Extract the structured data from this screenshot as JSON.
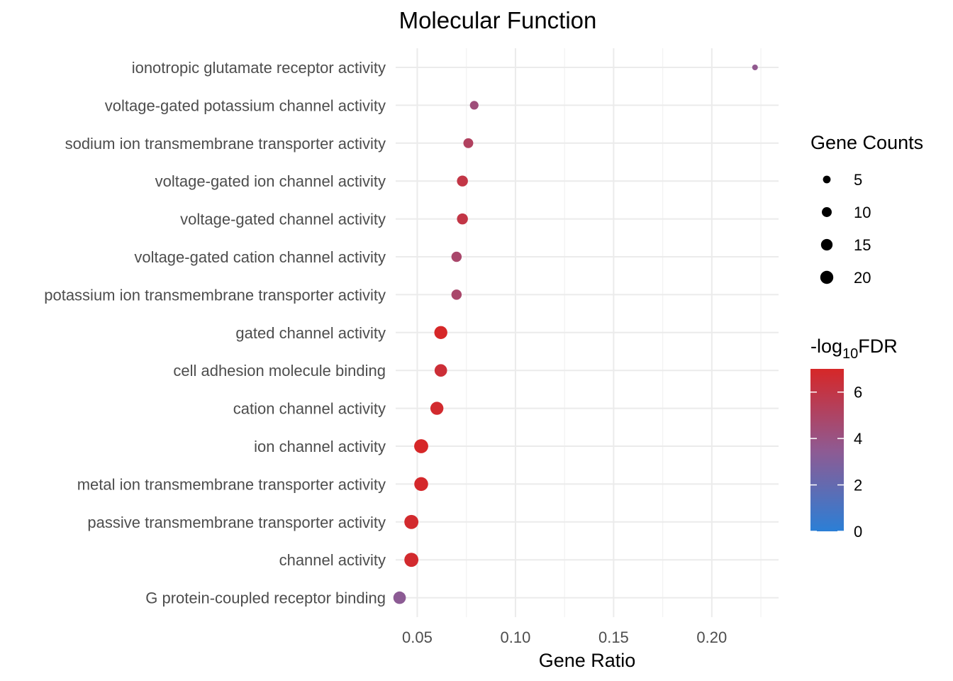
{
  "chart_data": {
    "type": "scatter",
    "title": "Molecular Function",
    "xlabel": "Gene Ratio",
    "ylabel": "",
    "xlim": [
      0.039,
      0.234
    ],
    "x_ticks": [
      0.05,
      0.1,
      0.15,
      0.2
    ],
    "x_tick_labels": [
      "0.05",
      "0.10",
      "0.15",
      "0.20"
    ],
    "grid": true,
    "categories": [
      "ionotropic glutamate receptor activity",
      "voltage-gated potassium channel activity",
      "sodium ion transmembrane transporter activity",
      "voltage-gated ion channel activity",
      "voltage-gated channel activity",
      "voltage-gated cation channel activity",
      "potassium ion transmembrane transporter activity",
      "gated channel activity",
      "cell adhesion molecule binding",
      "cation channel activity",
      "ion channel activity",
      "metal ion transmembrane transporter activity",
      "passive transmembrane transporter activity",
      "channel activity",
      "G protein-coupled receptor binding"
    ],
    "points": [
      {
        "term": "ionotropic glutamate receptor activity",
        "gene_ratio": 0.222,
        "gene_count": 2,
        "neg_log10_fdr": 3.6
      },
      {
        "term": "voltage-gated potassium channel activity",
        "gene_ratio": 0.079,
        "gene_count": 7,
        "neg_log10_fdr": 4.3
      },
      {
        "term": "sodium ion transmembrane transporter activity",
        "gene_ratio": 0.076,
        "gene_count": 10,
        "neg_log10_fdr": 5.2
      },
      {
        "term": "voltage-gated ion channel activity",
        "gene_ratio": 0.073,
        "gene_count": 13,
        "neg_log10_fdr": 6.0
      },
      {
        "term": "voltage-gated channel activity",
        "gene_ratio": 0.073,
        "gene_count": 13,
        "neg_log10_fdr": 6.0
      },
      {
        "term": "voltage-gated cation channel activity",
        "gene_ratio": 0.07,
        "gene_count": 11,
        "neg_log10_fdr": 4.8
      },
      {
        "term": "potassium ion transmembrane transporter activity",
        "gene_ratio": 0.07,
        "gene_count": 11,
        "neg_log10_fdr": 4.8
      },
      {
        "term": "gated channel activity",
        "gene_ratio": 0.062,
        "gene_count": 20,
        "neg_log10_fdr": 7.0
      },
      {
        "term": "cell adhesion molecule binding",
        "gene_ratio": 0.062,
        "gene_count": 18,
        "neg_log10_fdr": 6.5
      },
      {
        "term": "cation channel activity",
        "gene_ratio": 0.06,
        "gene_count": 20,
        "neg_log10_fdr": 6.8
      },
      {
        "term": "ion channel activity",
        "gene_ratio": 0.052,
        "gene_count": 24,
        "neg_log10_fdr": 7.0
      },
      {
        "term": "metal ion transmembrane transporter activity",
        "gene_ratio": 0.052,
        "gene_count": 23,
        "neg_log10_fdr": 6.9
      },
      {
        "term": "passive transmembrane transporter activity",
        "gene_ratio": 0.047,
        "gene_count": 24,
        "neg_log10_fdr": 6.8
      },
      {
        "term": "channel activity",
        "gene_ratio": 0.047,
        "gene_count": 24,
        "neg_log10_fdr": 6.8
      },
      {
        "term": "G protein-coupled receptor binding",
        "gene_ratio": 0.041,
        "gene_count": 18,
        "neg_log10_fdr": 3.4
      }
    ],
    "size_legend": {
      "title": "Gene Counts",
      "values": [
        5,
        10,
        15,
        20
      ],
      "labels": [
        "5",
        "10",
        "15",
        "20"
      ]
    },
    "color_legend": {
      "title_prefix": "-log",
      "title_subscript": "10",
      "title_suffix": "FDR",
      "range": [
        0,
        7
      ],
      "ticks": [
        0,
        2,
        4,
        6
      ],
      "tick_labels": [
        "0",
        "2",
        "4",
        "6"
      ],
      "low_color": "#2b7fd6",
      "mid_color": "#8f5a92",
      "high_color": "#d62728"
    }
  }
}
